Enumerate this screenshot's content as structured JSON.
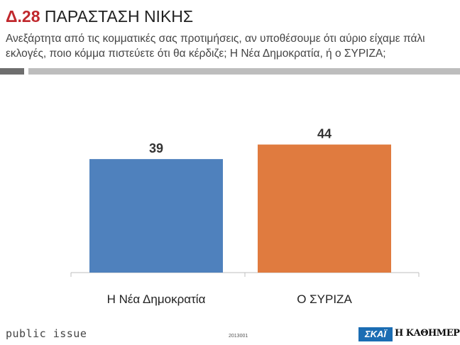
{
  "header": {
    "code": "Δ.28",
    "title": "ΠΑΡΑΣΤΑΣΗ ΝΙΚΗΣ",
    "subtitle": "Ανεξάρτητα από τις κομματικές σας προτιμήσεις, αν υποθέσουμε ότι αύριο είχαμε πάλι εκλογές, ποιο κόμμα πιστεύετε ότι θα κέρδιζε; Η Νέα Δημοκρατία, ή ο ΣΥΡΙΖΑ;"
  },
  "chart_data": {
    "type": "bar",
    "categories": [
      "Η Νέα Δημοκρατία",
      "Ο ΣΥΡΙΖΑ"
    ],
    "values": [
      39,
      44
    ],
    "colors": [
      "#4f81bd",
      "#e07b3f"
    ],
    "title": "",
    "xlabel": "",
    "ylabel": "",
    "ylim": [
      0,
      50
    ],
    "grid": false,
    "legend": "none"
  },
  "footer": {
    "brand": "public issue",
    "code": "2013001",
    "logo_skai": "ΣΚΑΪ",
    "logo_kathimerini": "Η ΚΑΘΗΜΕΡΙΝΗ"
  }
}
